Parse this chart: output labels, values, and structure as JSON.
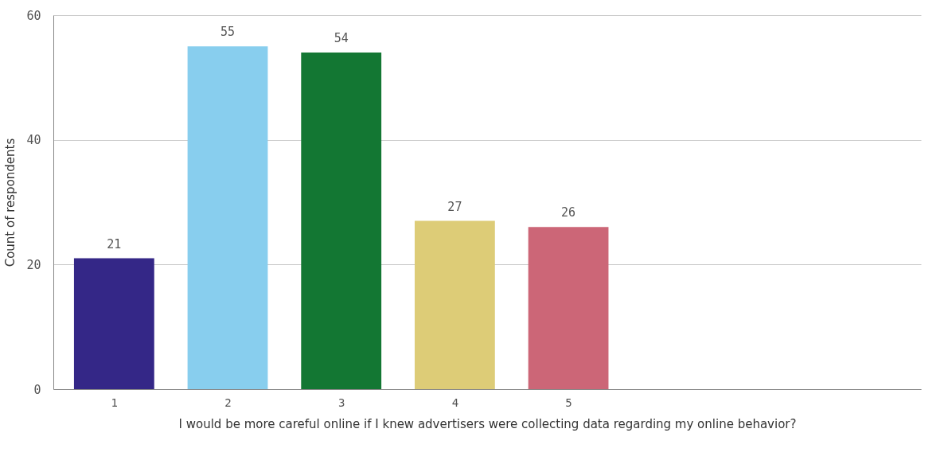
{
  "chart_data": {
    "type": "bar",
    "xlabel": "I would be more careful online if I knew advertisers were collecting data regarding my online behavior?",
    "ylabel": "Count of respondents",
    "categories": [
      "1",
      "2",
      "3",
      "4",
      "5"
    ],
    "values": [
      21,
      55,
      54,
      27,
      26
    ],
    "colors": [
      "#342787",
      "#88ceee",
      "#137733",
      "#ddcc77",
      "#cc6677"
    ],
    "ylim": [
      0,
      60
    ],
    "yticks": [
      0,
      20,
      40,
      60
    ],
    "grid": "y",
    "data_labels": true
  }
}
